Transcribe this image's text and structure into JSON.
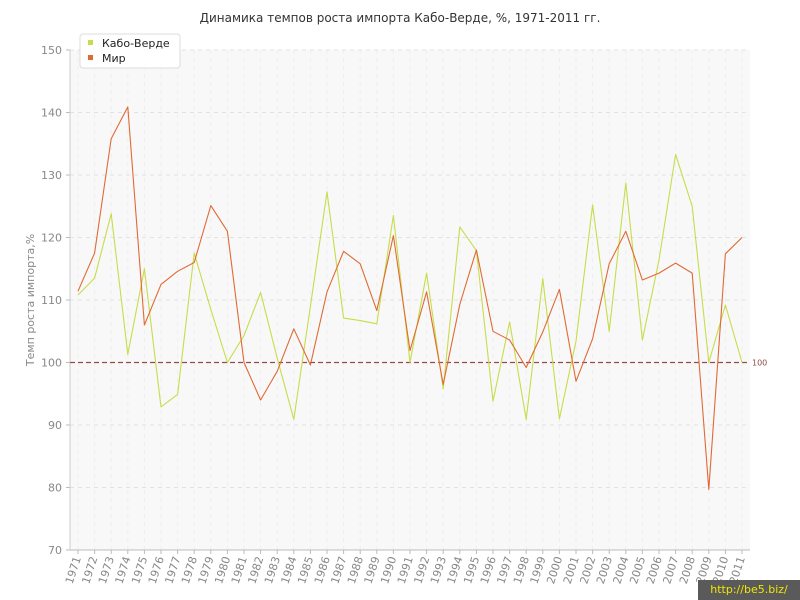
{
  "chart_data": {
    "type": "line",
    "title": "Динамика темпов роста импорта Кабо-Верде, %, 1971-2011 гг.",
    "ylabel": "Темп роста импорта,%",
    "xlabel": "",
    "ylim": [
      70,
      150
    ],
    "yticks": [
      70,
      80,
      90,
      100,
      110,
      120,
      130,
      140,
      150
    ],
    "x": [
      "1971",
      "1972",
      "1973",
      "1974",
      "1975",
      "1976",
      "1977",
      "1978",
      "1979",
      "1980",
      "1981",
      "1982",
      "1983",
      "1984",
      "1985",
      "1986",
      "1987",
      "1988",
      "1989",
      "1990",
      "1991",
      "1992",
      "1993",
      "1994",
      "1995",
      "1996",
      "1997",
      "1998",
      "1999",
      "2000",
      "2001",
      "2002",
      "2003",
      "2004",
      "2005",
      "2006",
      "2007",
      "2008",
      "2009",
      "2010",
      "2011"
    ],
    "series": [
      {
        "name": "Кабо-Верде",
        "color": "#c8dc4a",
        "values": [
          110.8,
          113.5,
          123.8,
          101.3,
          115.0,
          92.9,
          94.9,
          117.5,
          108.5,
          100.0,
          104.3,
          111.2,
          100.7,
          90.9,
          109.0,
          127.3,
          107.1,
          106.7,
          106.2,
          123.5,
          100.0,
          114.3,
          95.8,
          121.7,
          117.9,
          93.8,
          106.5,
          90.9,
          113.4,
          91.0,
          103.4,
          125.2,
          105.0,
          128.7,
          103.6,
          116.4,
          133.3,
          125.0,
          100.0,
          109.2,
          100.0
        ]
      },
      {
        "name": "Мир",
        "color": "#e06a35",
        "values": [
          111.4,
          117.5,
          135.8,
          140.9,
          106.0,
          112.5,
          114.6,
          116.0,
          125.1,
          121.0,
          100.0,
          94.0,
          98.6,
          105.4,
          99.6,
          111.3,
          117.8,
          115.8,
          108.3,
          120.3,
          101.9,
          111.3,
          96.5,
          109.3,
          118.0,
          105.0,
          103.6,
          99.2,
          104.9,
          111.7,
          97.0,
          103.8,
          115.8,
          121.0,
          113.2,
          114.3,
          115.9,
          114.3,
          79.7,
          117.4,
          120.0
        ]
      }
    ],
    "reference_line": {
      "value": 100,
      "label": "100",
      "color": "#9a4a4a"
    },
    "grid": true,
    "legend_position": "top-left"
  },
  "watermark": "http://be5.biz/"
}
